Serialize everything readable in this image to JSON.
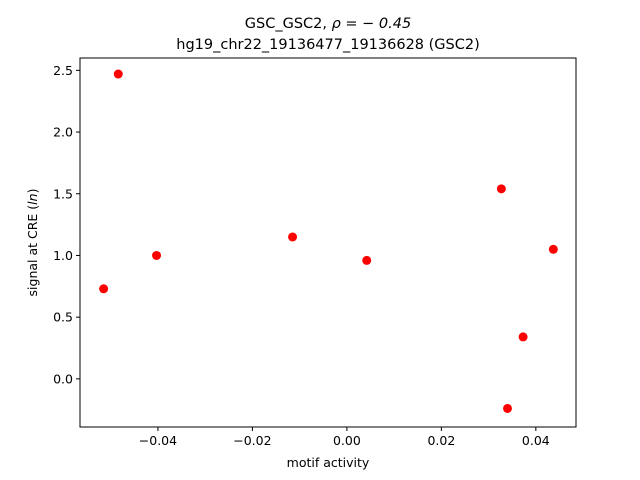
{
  "chart_data": {
    "type": "scatter",
    "title_line1_prefix": "GSC_GSC2, ",
    "title_line1_rho": "ρ = − 0.45",
    "title_line2": "hg19_chr22_19136477_19136628 (GSC2)",
    "xlabel": "motif activity",
    "ylabel_prefix": "signal at CRE (",
    "ylabel_italic": "ln",
    "ylabel_suffix": ")",
    "xlim": [
      -0.0565,
      0.0485
    ],
    "ylim": [
      -0.39,
      2.6
    ],
    "xticks": [
      -0.04,
      -0.02,
      0.0,
      0.02,
      0.04
    ],
    "xtick_labels": [
      "−0.04",
      "−0.02",
      "0.00",
      "0.02",
      "0.04"
    ],
    "yticks": [
      0.0,
      0.5,
      1.0,
      1.5,
      2.0,
      2.5
    ],
    "ytick_labels": [
      "0.0",
      "0.5",
      "1.0",
      "1.5",
      "2.0",
      "2.5"
    ],
    "marker_color": "#ff0000",
    "grid": false,
    "points": [
      {
        "x": -0.0515,
        "y": 0.73
      },
      {
        "x": -0.0484,
        "y": 2.47
      },
      {
        "x": -0.0403,
        "y": 1.0
      },
      {
        "x": -0.0115,
        "y": 1.15
      },
      {
        "x": 0.0042,
        "y": 0.96
      },
      {
        "x": 0.0327,
        "y": 1.54
      },
      {
        "x": 0.034,
        "y": -0.24
      },
      {
        "x": 0.0373,
        "y": 0.34
      },
      {
        "x": 0.0437,
        "y": 1.05
      }
    ]
  }
}
